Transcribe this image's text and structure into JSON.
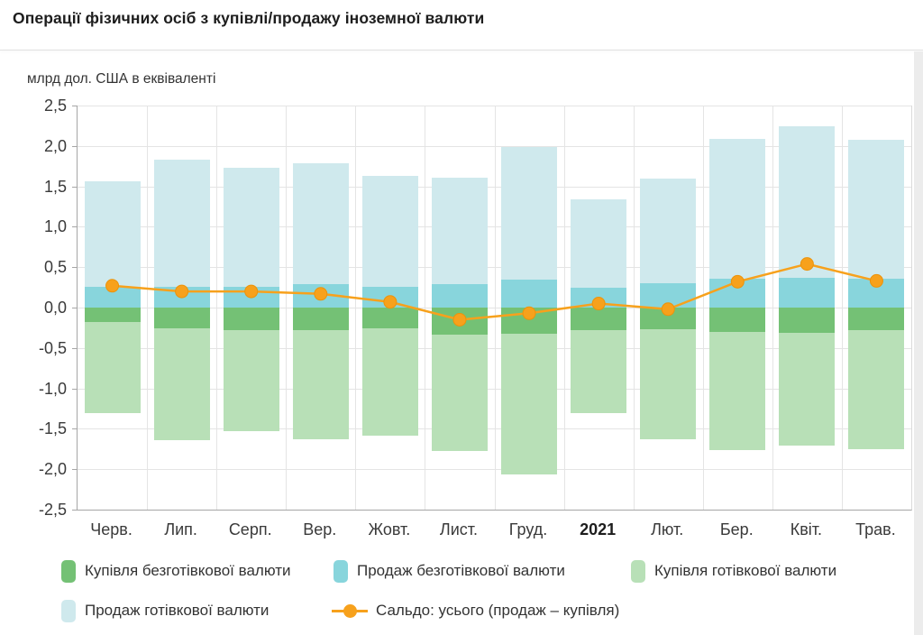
{
  "header": {
    "title": "Операції фізичних осіб з купівлі/продажу іноземної валюти"
  },
  "chart_data": {
    "type": "bar",
    "subtype": "stacked-with-line",
    "title": "Операції фізичних осіб з купівлі/продажу іноземної валюти",
    "unit_label": "млрд дол. США в еквіваленті",
    "xlabel": "",
    "ylabel": "млрд дол. США в еквіваленті",
    "ylim": [
      -2.5,
      2.5
    ],
    "grid": true,
    "categories": [
      "Черв.",
      "Лип.",
      "Серп.",
      "Вер.",
      "Жовт.",
      "Лист.",
      "Груд.",
      "2021",
      "Лют.",
      "Бер.",
      "Квіт.",
      "Трав."
    ],
    "bold_category": "2021",
    "y_ticks": [
      {
        "label": "2,5",
        "value": 2.5
      },
      {
        "label": "2,0",
        "value": 2.0
      },
      {
        "label": "1,5",
        "value": 1.5
      },
      {
        "label": "1,0",
        "value": 1.0
      },
      {
        "label": "0,5",
        "value": 0.5
      },
      {
        "label": "0,0",
        "value": 0.0
      },
      {
        "label": "-0,5",
        "value": -0.5
      },
      {
        "label": "-1,0",
        "value": -1.0
      },
      {
        "label": "-1,5",
        "value": -1.5
      },
      {
        "label": "-2,0",
        "value": -2.0
      },
      {
        "label": "-2,5",
        "value": -2.5
      }
    ],
    "stacked_series": [
      {
        "name": "Купівля безготівкової валюти",
        "color": "#74c175",
        "values": [
          -0.18,
          -0.26,
          -0.28,
          -0.28,
          -0.26,
          -0.34,
          -0.32,
          -0.28,
          -0.27,
          -0.3,
          -0.31,
          -0.28
        ]
      },
      {
        "name": "Продаж безготівкової валюти",
        "color": "#88d5dc",
        "values": [
          0.26,
          0.26,
          0.26,
          0.29,
          0.26,
          0.29,
          0.35,
          0.24,
          0.3,
          0.36,
          0.37,
          0.36
        ]
      },
      {
        "name": "Купівля готівкової валюти",
        "color": "#b8e0b7",
        "values": [
          -1.13,
          -1.38,
          -1.25,
          -1.35,
          -1.32,
          -1.44,
          -1.74,
          -1.03,
          -1.36,
          -1.46,
          -1.4,
          -1.47
        ]
      },
      {
        "name": "Продаж готівкової валюти",
        "color": "#cfe9ed",
        "values": [
          1.3,
          1.57,
          1.47,
          1.5,
          1.37,
          1.32,
          1.64,
          1.1,
          1.3,
          1.73,
          1.87,
          1.72
        ]
      }
    ],
    "line_series": {
      "name": "Сальдо: усього (продаж – купівля)",
      "color": "#f7a11c",
      "marker_stroke": "#ec930b",
      "values": [
        0.27,
        0.2,
        0.2,
        0.17,
        0.07,
        -0.15,
        -0.07,
        0.05,
        -0.02,
        0.32,
        0.54,
        0.33
      ]
    }
  },
  "legend": {
    "row1": [
      {
        "label": "Купівля безготівкової валюти",
        "color": "#74c175",
        "type": "swatch"
      },
      {
        "label": "Продаж безготівкової валюти",
        "color": "#88d5dc",
        "type": "swatch"
      },
      {
        "label": "Купівля готівкової валюти",
        "color": "#b8e0b7",
        "type": "swatch"
      }
    ],
    "row2": [
      {
        "label": "Продаж готівкової валюти",
        "color": "#cfe9ed",
        "type": "swatch"
      },
      {
        "label": "Сальдо: усього (продаж – купівля)",
        "color": "#f7a11c",
        "type": "line"
      }
    ]
  },
  "colors": {
    "grid": "#e4e4e4",
    "axis": "#a6a6a6",
    "axis_text": "#3a3a3a",
    "title_text": "#1d1d1d",
    "right_strip": "#ececec"
  }
}
